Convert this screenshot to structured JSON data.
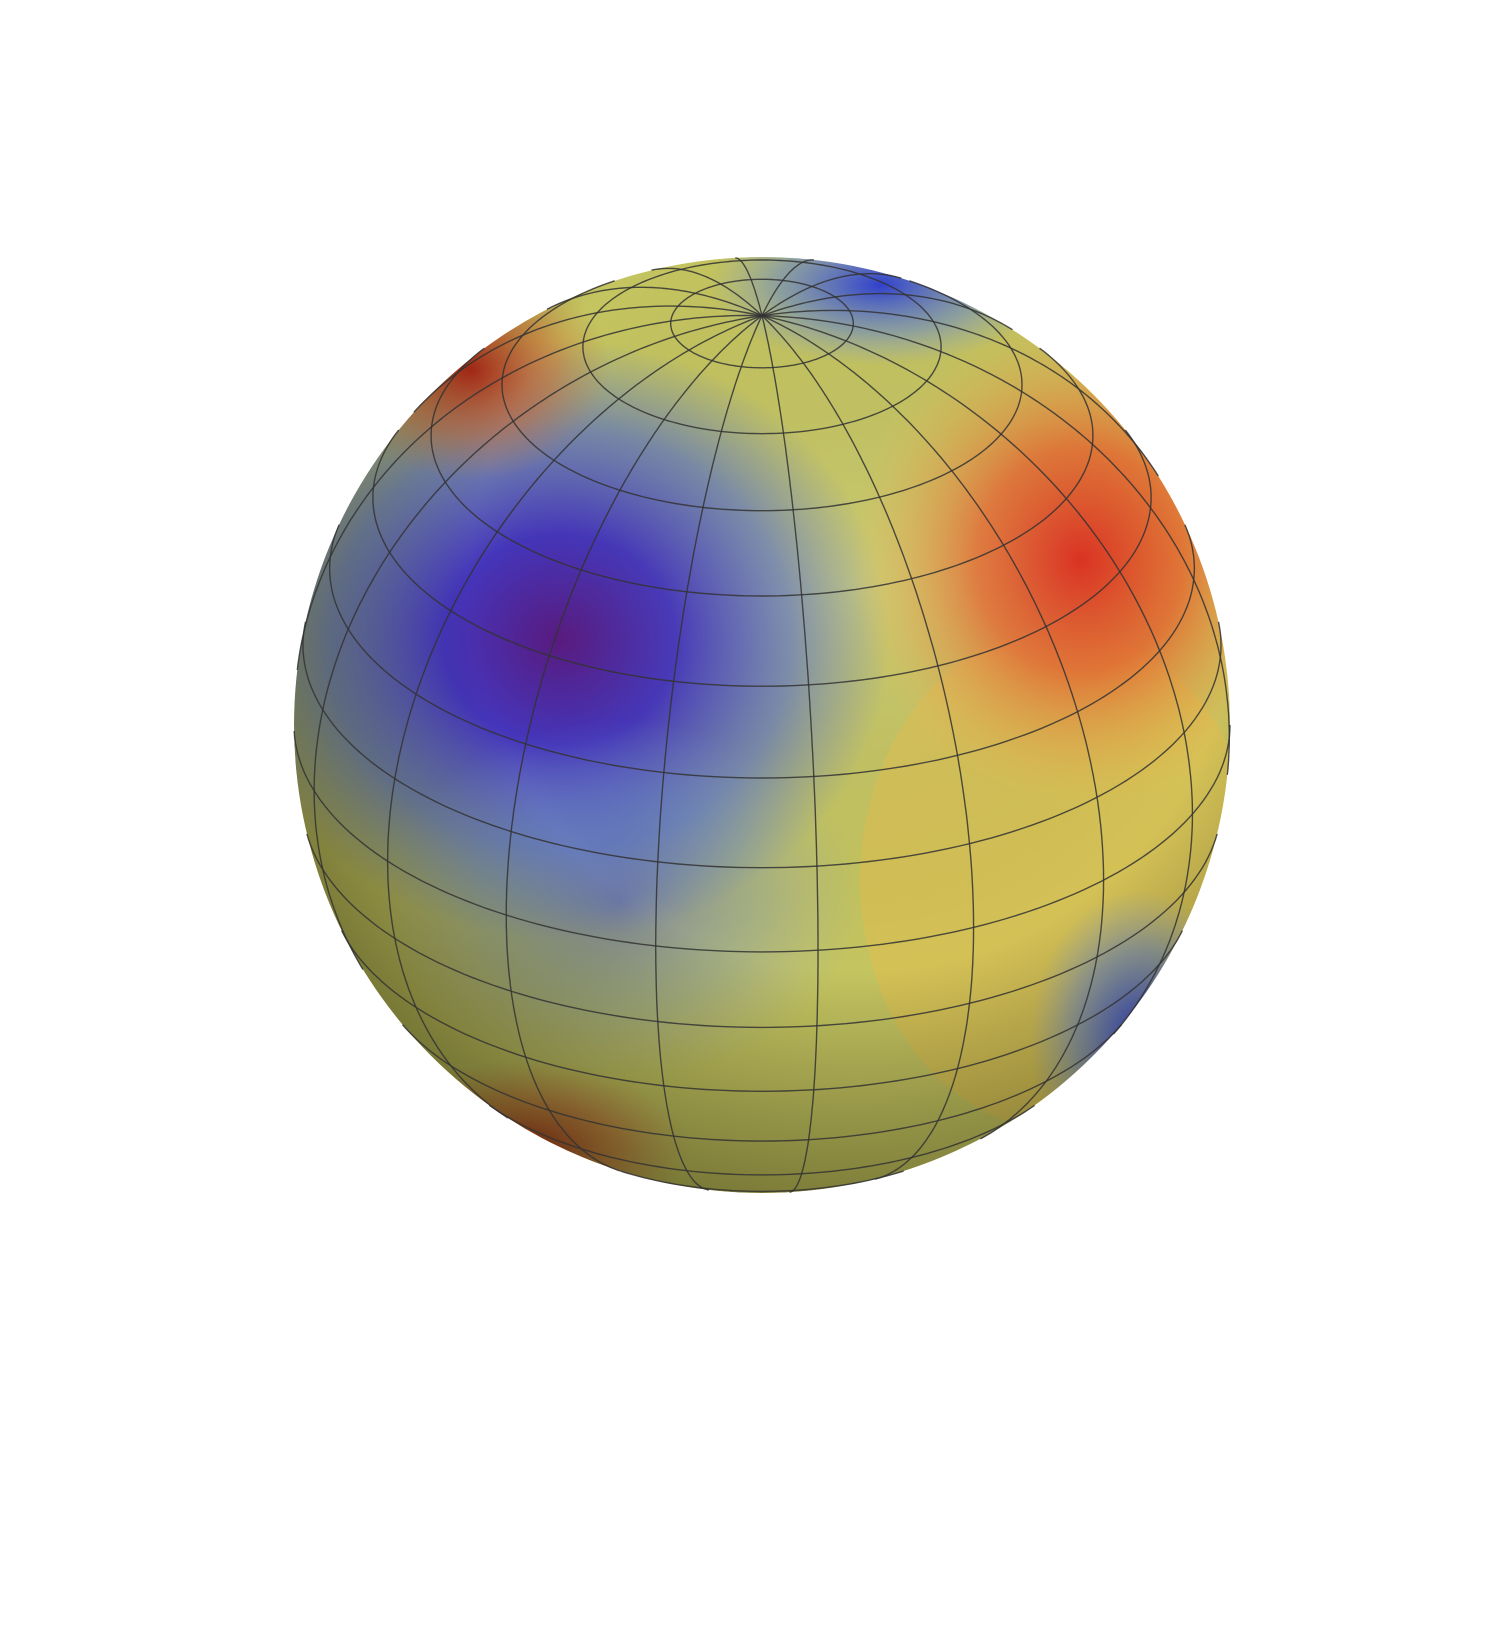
{
  "chart_data": {
    "type": "surface"
  }
}
